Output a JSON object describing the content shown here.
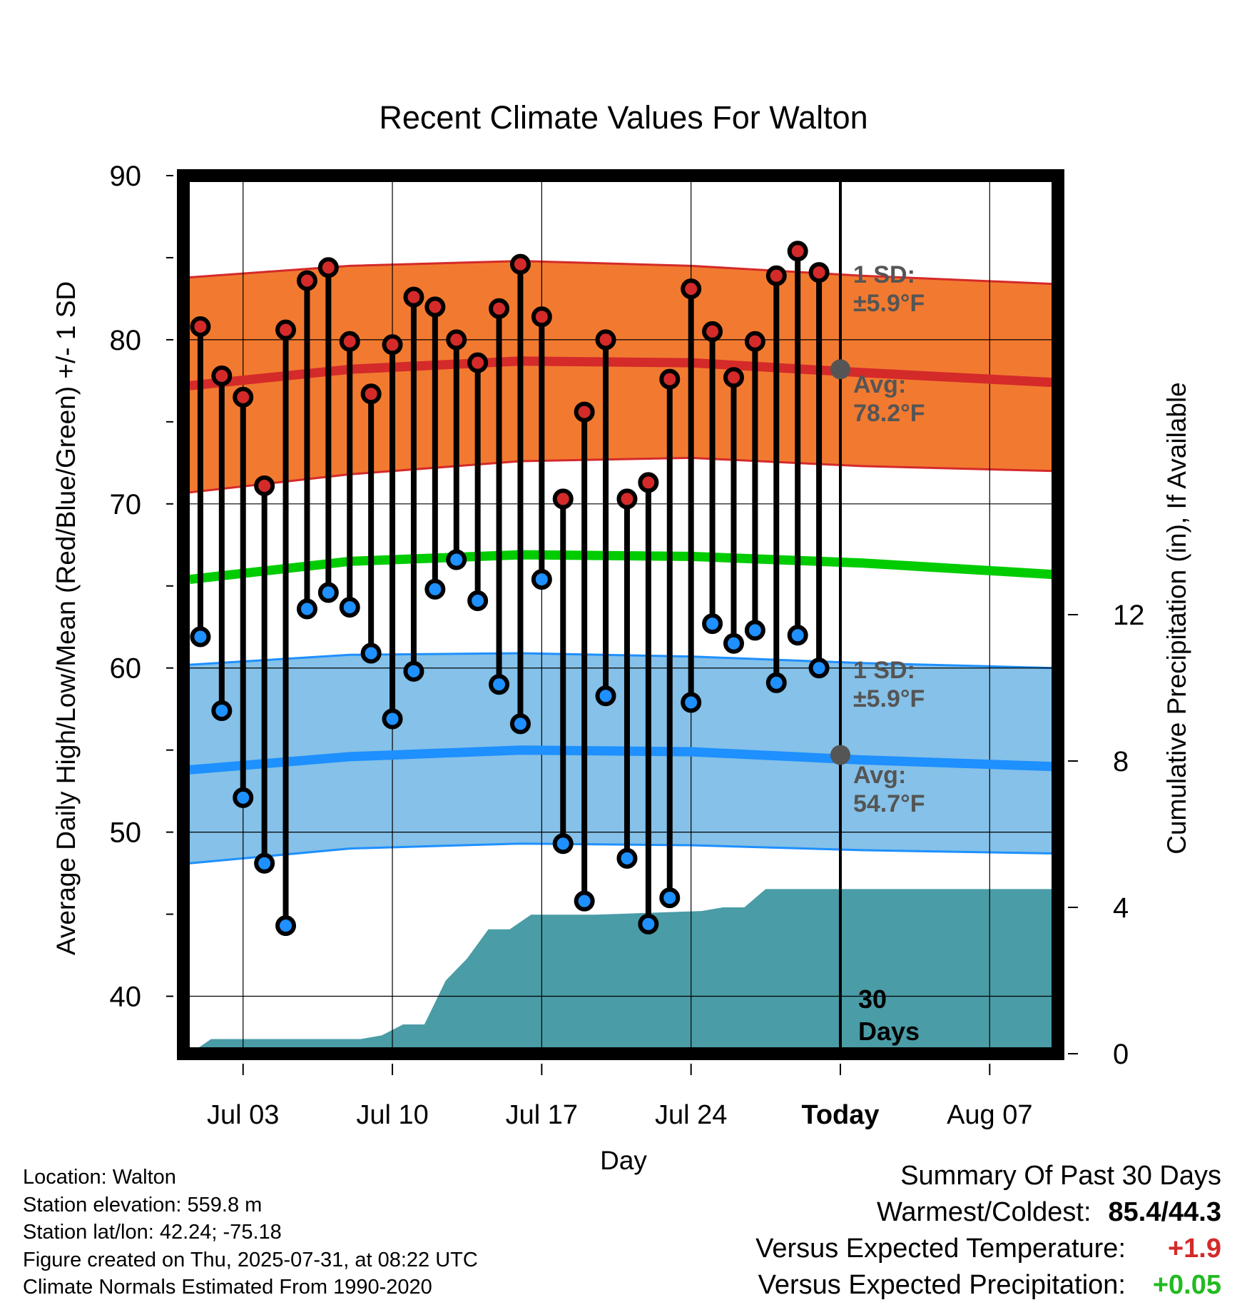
{
  "chart_data": {
    "type": "line",
    "title": "Recent Climate Values For Walton",
    "xlabel": "Day",
    "ylabel": "Average Daily High/Low/Mean (Red/Blue/Green) +/- 1 SD",
    "y2label": "Cumulative Precipitation (in), If Available",
    "ylim": [
      36.5,
      90
    ],
    "y2lim": [
      0,
      24
    ],
    "y_ticks": [
      40,
      50,
      60,
      70,
      80,
      90
    ],
    "y2_ticks": [
      0,
      4,
      8,
      12
    ],
    "x_tick_labels": [
      "Jul 03",
      "Jul 10",
      "Jul 17",
      "Jul 24",
      "Today",
      "Aug 07"
    ],
    "x_tick_days": [
      3,
      10,
      17,
      24,
      31,
      38
    ],
    "xlim": [
      0.2,
      41.2
    ],
    "today_day": 31,
    "grid": true,
    "days": [
      1,
      2,
      3,
      4,
      5,
      6,
      7,
      8,
      9,
      10,
      11,
      12,
      13,
      14,
      15,
      16,
      17,
      18,
      19,
      20,
      21,
      22,
      23,
      24,
      25,
      26,
      27,
      28,
      29,
      30
    ],
    "series": [
      {
        "name": "High",
        "color": "#d42a2a",
        "values": [
          80.8,
          77.8,
          76.5,
          71.1,
          80.6,
          83.6,
          84.4,
          79.9,
          76.7,
          79.7,
          82.6,
          82.0,
          80.0,
          78.6,
          81.9,
          84.6,
          81.4,
          70.3,
          75.6,
          80.0,
          70.3,
          71.3,
          77.6,
          83.1,
          80.5,
          77.7,
          79.9,
          83.9,
          85.4,
          84.1
        ]
      },
      {
        "name": "Low",
        "color": "#1e90ff",
        "values": [
          61.9,
          57.4,
          52.1,
          48.1,
          44.3,
          63.6,
          64.6,
          63.7,
          60.9,
          56.9,
          59.8,
          64.8,
          66.6,
          64.1,
          59.0,
          56.6,
          65.4,
          49.3,
          45.8,
          58.3,
          48.4,
          44.4,
          46.0,
          57.9,
          62.7,
          61.5,
          62.3,
          59.1,
          62.0,
          60.0
        ]
      }
    ],
    "normals": {
      "days": [
        0.5,
        8,
        16,
        24,
        32,
        41
      ],
      "high_avg": [
        77.2,
        78.2,
        78.7,
        78.6,
        78.0,
        77.4
      ],
      "high_upper": [
        83.8,
        84.5,
        84.8,
        84.5,
        83.9,
        83.4
      ],
      "high_lower": [
        70.7,
        71.8,
        72.6,
        72.8,
        72.3,
        72.0
      ],
      "mean": [
        65.4,
        66.5,
        66.9,
        66.8,
        66.4,
        65.7
      ],
      "low_avg": [
        53.8,
        54.6,
        55.0,
        54.9,
        54.4,
        54.0
      ],
      "low_upper": [
        60.2,
        60.8,
        60.9,
        60.7,
        60.3,
        60.0
      ],
      "low_lower": [
        48.1,
        49.0,
        49.3,
        49.2,
        48.9,
        48.7
      ]
    },
    "precip_cumulative": {
      "days": [
        0.5,
        1.5,
        7,
        8.5,
        9.5,
        10.5,
        11.5,
        12.5,
        13.5,
        14.5,
        15.5,
        16.5,
        17.5,
        18.5,
        19.5,
        24.5,
        25.5,
        26.5,
        27.5,
        41.2
      ],
      "values": [
        0,
        0.4,
        0.4,
        0.4,
        0.5,
        0.8,
        0.8,
        2.0,
        2.6,
        3.4,
        3.4,
        3.8,
        3.8,
        3.8,
        3.8,
        3.9,
        4.0,
        4.0,
        4.5,
        4.5
      ]
    },
    "annotations": {
      "high_sd_line1": "1 SD:",
      "high_sd_line2": "±5.9°F",
      "high_avg_line1": "Avg:",
      "high_avg_line2": "78.2°F",
      "low_sd_line1": "1 SD:",
      "low_sd_line2": "±5.9°F",
      "low_avg_line1": "Avg:",
      "low_avg_line2": "54.7°F",
      "period_line1": "30",
      "period_line2": "Days",
      "today_high_avg": 78.2,
      "today_low_avg": 54.7
    },
    "colors": {
      "high_band": "#f27a30",
      "high_line": "#d42a2a",
      "low_band": "#85c1e8",
      "low_line": "#1e90ff",
      "mean_line": "#00cc00",
      "precip": "#4a9ca6",
      "annotation_text": "#555555"
    }
  },
  "station": {
    "location": "Location: Walton",
    "elevation": "Station elevation: 559.8 m",
    "latlon": "Station lat/lon: 42.24; -75.18",
    "created": "Figure created on Thu, 2025-07-31, at 08:22 UTC",
    "normals_period": "Climate Normals Estimated From 1990-2020"
  },
  "summary": {
    "title": "Summary Of Past 30 Days",
    "warmest_label": "Warmest/Coldest:",
    "warmest_value": "85.4/44.3",
    "temp_label": "Versus Expected Temperature:",
    "temp_value": "+1.9",
    "temp_color": "#d42a2a",
    "precip_label": "Versus Expected Precipitation:",
    "precip_value": "+0.05",
    "precip_color": "#22bb22"
  }
}
